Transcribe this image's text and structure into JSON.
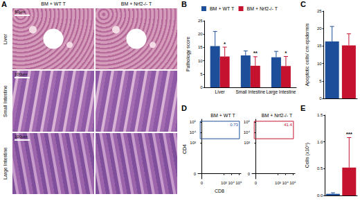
{
  "panel_labels": [
    "A",
    "B",
    "C",
    "D",
    "E"
  ],
  "histology": {
    "columns": [
      "BM + WT T",
      "BM + Nrf2-/- T"
    ],
    "rows": [
      "Liver",
      "Small Intestine",
      "Large Intestine"
    ],
    "scale_bars": [
      "50µm",
      "100µm",
      "100µm"
    ]
  },
  "chart_data": [
    {
      "type": "bar",
      "y_label": "Pathology score",
      "categories": [
        "Liver",
        "Small Intestine",
        "Large Intestine"
      ],
      "series": [
        {
          "name": "BM + WT T",
          "color": "#1c4e9a",
          "values": [
            15.5,
            12,
            11.3
          ],
          "errors": [
            5.5,
            1.7,
            2.2
          ]
        },
        {
          "name": "BM + Nrf2-/- T",
          "color": "#c4122f",
          "values": [
            11.6,
            8.1,
            8
          ],
          "errors": [
            3.5,
            3.4,
            3.6
          ],
          "annotations": [
            "*",
            "**",
            "*"
          ]
        }
      ],
      "ylim": [
        0,
        25
      ],
      "yticks": [
        0,
        5,
        10,
        15,
        20,
        25
      ],
      "legend": "top"
    },
    {
      "type": "bar",
      "y_label": "Apoptotic cells/ cm epidermis",
      "categories": [
        null,
        null
      ],
      "values": [
        16.3,
        15.2
      ],
      "errors": [
        4.3,
        3.3
      ],
      "colors": [
        "#1c4e9a",
        "#c4122f"
      ],
      "ylim": [
        0,
        25
      ],
      "yticks": [
        0,
        5,
        10,
        15,
        20,
        25
      ]
    },
    {
      "type": "scatter",
      "x_label": "CD8",
      "y_label": "CD4",
      "xlim": [
        -0.5,
        5.3
      ],
      "ylim": [
        -0.5,
        5.3
      ],
      "xticks": [
        {
          "value": 0,
          "label": "0"
        },
        {
          "value": 3,
          "label": "10³"
        },
        {
          "value": 4,
          "label": "10⁴"
        },
        {
          "value": 5,
          "label": "10⁵"
        }
      ],
      "yticks": [
        {
          "value": 0,
          "label": "0"
        },
        {
          "value": 3,
          "label": "10³"
        },
        {
          "value": 4,
          "label": "10⁴"
        },
        {
          "value": 5,
          "label": "10⁵"
        }
      ],
      "panels": [
        {
          "title": "BM + WT T",
          "color": "#1c4e9a",
          "gate": {
            "x": [
              -0.2,
              5.1
            ],
            "y": [
              3.4,
              5.1
            ],
            "label": "0.73"
          }
        },
        {
          "title": "BM + Nrf2-/- T",
          "color": "#c4122f",
          "gate": {
            "x": [
              -0.2,
              5.1
            ],
            "y": [
              3.4,
              5.1
            ],
            "label": "41.4"
          }
        }
      ]
    },
    {
      "type": "bar",
      "y_label": "Cells (x10⁶)",
      "categories": [
        null,
        null
      ],
      "values": [
        0.03,
        0.52
      ],
      "errors": [
        0.02,
        0.56
      ],
      "annotations": [
        null,
        "***"
      ],
      "colors": [
        "#1c4e9a",
        "#c4122f"
      ],
      "ylim": [
        0,
        1.5
      ],
      "yticks": [
        {
          "value": 0,
          "label": "0.0"
        },
        {
          "value": 0.5,
          "label": "0.5"
        },
        {
          "value": 1,
          "label": "1.0"
        },
        {
          "value": 1.5,
          "label": "1.5"
        }
      ]
    }
  ]
}
